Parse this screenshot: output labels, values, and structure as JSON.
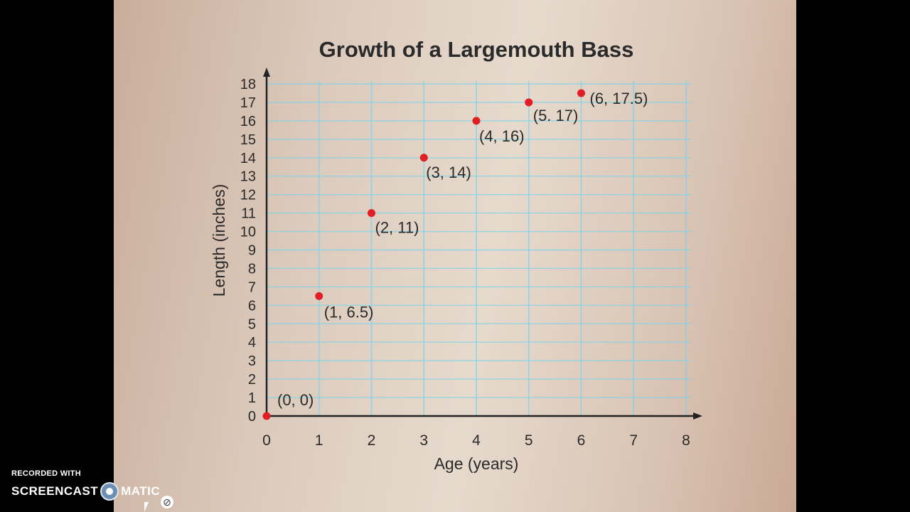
{
  "chart_data": {
    "type": "scatter",
    "title": "Growth of a Largemouth Bass",
    "xlabel": "Age (years)",
    "ylabel": "Length (inches)",
    "xlim": [
      0,
      8
    ],
    "ylim": [
      0,
      18
    ],
    "x_ticks": [
      "0",
      "1",
      "2",
      "3",
      "4",
      "5",
      "6",
      "7",
      "8"
    ],
    "y_ticks": [
      "0",
      "1",
      "2",
      "3",
      "4",
      "5",
      "6",
      "7",
      "8",
      "9",
      "10",
      "11",
      "12",
      "13",
      "14",
      "15",
      "16",
      "17",
      "18"
    ],
    "grid": true,
    "points": [
      {
        "x": 0,
        "y": 0,
        "label": "(0, 0)"
      },
      {
        "x": 1,
        "y": 6.5,
        "label": "(1, 6.5)"
      },
      {
        "x": 2,
        "y": 11,
        "label": "(2, 11)"
      },
      {
        "x": 3,
        "y": 14,
        "label": "(3, 14)"
      },
      {
        "x": 4,
        "y": 16,
        "label": "(4, 16)"
      },
      {
        "x": 5,
        "y": 17,
        "label": "(5. 17)"
      },
      {
        "x": 6,
        "y": 17.5,
        "label": "(6, 17.5)"
      }
    ],
    "colors": {
      "point": "#e01e24",
      "grid": "#7fd3ea",
      "axis": "#222222"
    }
  },
  "watermark": {
    "top": "RECORDED WITH",
    "left": "SCREENCAST",
    "right": "MATIC"
  }
}
